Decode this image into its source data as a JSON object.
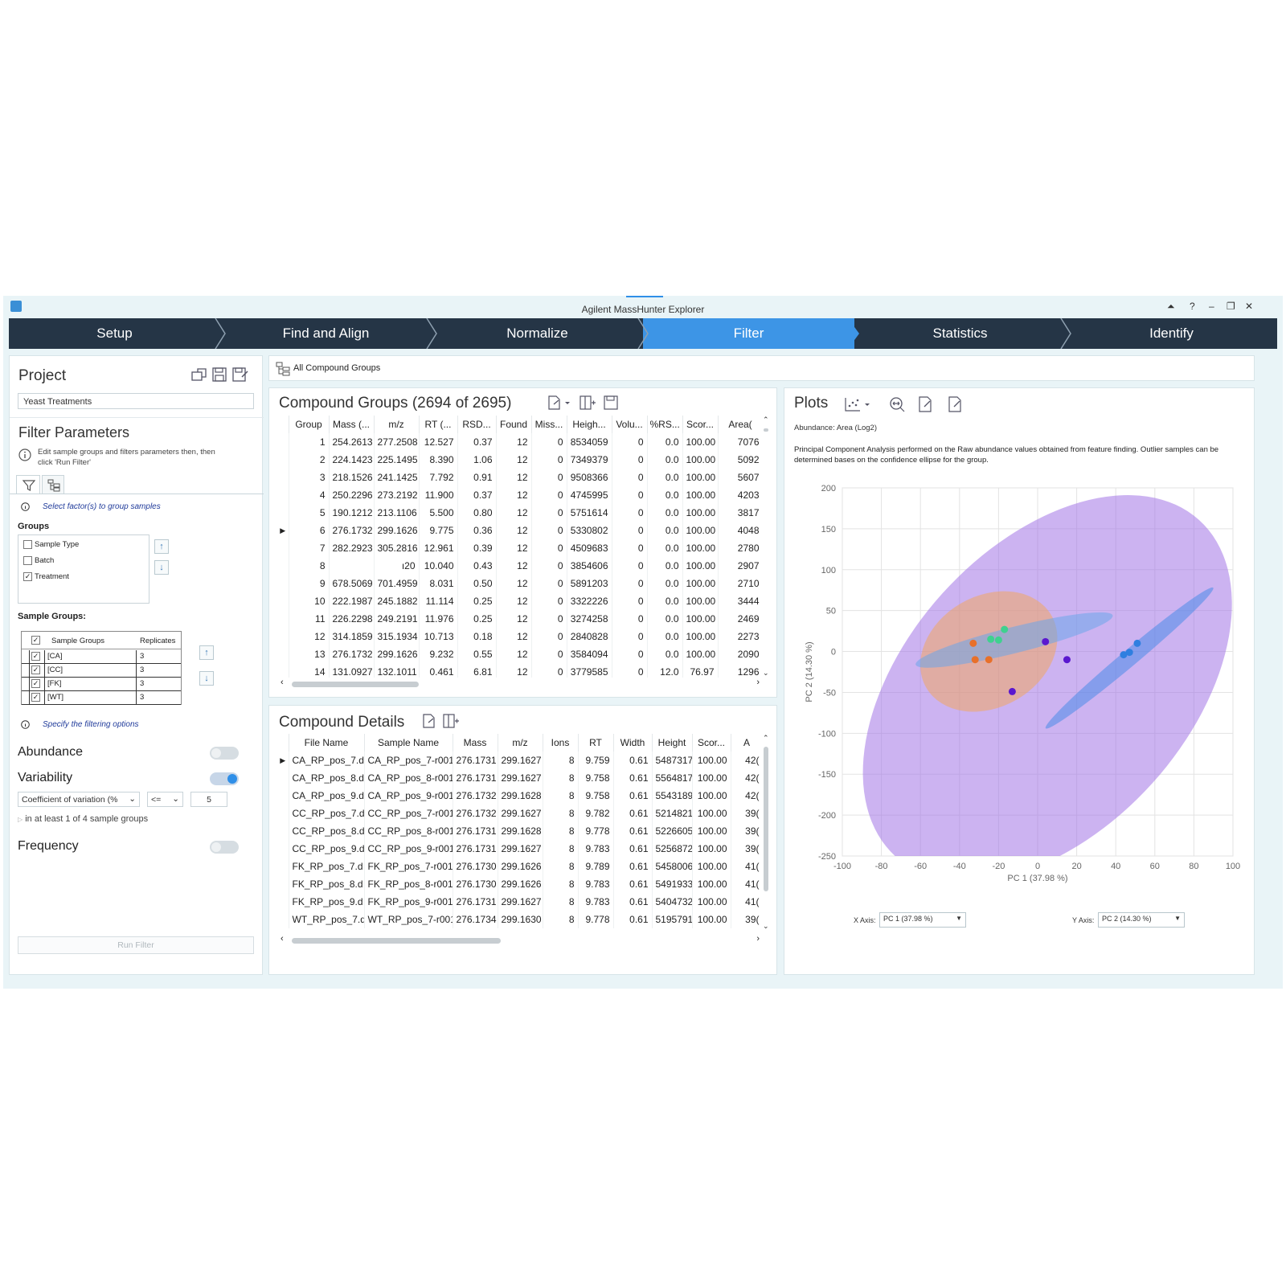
{
  "window": {
    "title": "Agilent MassHunter Explorer",
    "controls": [
      "⏶",
      "?",
      "–",
      "❐",
      "✕"
    ]
  },
  "wizard": {
    "steps": [
      {
        "label": "Setup",
        "active": false
      },
      {
        "label": "Find and Align",
        "active": false
      },
      {
        "label": "Normalize",
        "active": false
      },
      {
        "label": "Filter",
        "active": true
      },
      {
        "label": "Statistics",
        "active": false
      },
      {
        "label": "Identify",
        "active": false
      }
    ]
  },
  "project": {
    "title": "Project",
    "name": "Yeast Treatments"
  },
  "filter_params": {
    "title": "Filter Parameters",
    "info": "Edit sample groups and filters parameters then, then click 'Run Filter'",
    "select_factor_hint": "Select factor(s) to group samples",
    "groups_label": "Groups",
    "groups": [
      {
        "label": "Sample Type",
        "checked": false
      },
      {
        "label": "Batch",
        "checked": false
      },
      {
        "label": "Treatment",
        "checked": true
      }
    ],
    "sample_groups_label": "Sample Groups:",
    "sample_groups_header": [
      "Sample Groups",
      "Replicates"
    ],
    "sample_groups": [
      {
        "name": "[CA]",
        "replicates": "3"
      },
      {
        "name": "[CC]",
        "replicates": "3"
      },
      {
        "name": "[FK]",
        "replicates": "3"
      },
      {
        "name": "[WT]",
        "replicates": "3"
      }
    ],
    "specify_hint": "Specify the filtering options",
    "abundance_label": "Abundance",
    "variability_label": "Variability",
    "variability_metric": "Coefficient of variation (%",
    "variability_op": "<=",
    "variability_value": "5",
    "variability_scope": "in at least 1 of 4 sample groups",
    "frequency_label": "Frequency",
    "toggles": {
      "abundance": false,
      "variability": true,
      "frequency": false
    },
    "run_button": "Run Filter"
  },
  "breadcrumb": {
    "label": "All Compound Groups"
  },
  "compound_groups": {
    "title": "Compound Groups (2694 of 2695)",
    "columns": [
      "Group",
      "Mass (...",
      "m/z",
      "RT (...",
      "RSD...",
      "Found",
      "Miss...",
      "Heigh...",
      "Volu...",
      "%RS...",
      "Scor...",
      "Area("
    ],
    "rows": [
      [
        "1",
        "254.2613",
        "277.2508",
        "12.527",
        "0.37",
        "12",
        "0",
        "8534059",
        "0",
        "0.0",
        "100.00",
        "7076"
      ],
      [
        "2",
        "224.1423",
        "225.1495",
        "8.390",
        "1.06",
        "12",
        "0",
        "7349379",
        "0",
        "0.0",
        "100.00",
        "5092"
      ],
      [
        "3",
        "218.1526",
        "241.1425",
        "7.792",
        "0.91",
        "12",
        "0",
        "9508366",
        "0",
        "0.0",
        "100.00",
        "5607"
      ],
      [
        "4",
        "250.2296",
        "273.2192",
        "11.900",
        "0.37",
        "12",
        "0",
        "4745995",
        "0",
        "0.0",
        "100.00",
        "4203"
      ],
      [
        "5",
        "190.1212",
        "213.1106",
        "5.500",
        "0.80",
        "12",
        "0",
        "5751614",
        "0",
        "0.0",
        "100.00",
        "3817"
      ],
      [
        "6",
        "276.1732",
        "299.1626",
        "9.775",
        "0.36",
        "12",
        "0",
        "5330802",
        "0",
        "0.0",
        "100.00",
        "4048"
      ],
      [
        "7",
        "282.2923",
        "305.2816",
        "12.961",
        "0.39",
        "12",
        "0",
        "4509683",
        "0",
        "0.0",
        "100.00",
        "2780"
      ],
      [
        "8",
        "",
        "ı20",
        "10.040",
        "0.43",
        "12",
        "0",
        "3854606",
        "0",
        "0.0",
        "100.00",
        "2907"
      ],
      [
        "9",
        "678.5069",
        "701.4959",
        "8.031",
        "0.50",
        "12",
        "0",
        "5891203",
        "0",
        "0.0",
        "100.00",
        "2710"
      ],
      [
        "10",
        "222.1987",
        "245.1882",
        "11.114",
        "0.25",
        "12",
        "0",
        "3322226",
        "0",
        "0.0",
        "100.00",
        "3444"
      ],
      [
        "11",
        "226.2298",
        "249.2191",
        "11.976",
        "0.25",
        "12",
        "0",
        "3274258",
        "0",
        "0.0",
        "100.00",
        "2469"
      ],
      [
        "12",
        "314.1859",
        "315.1934",
        "10.713",
        "0.18",
        "12",
        "0",
        "2840828",
        "0",
        "0.0",
        "100.00",
        "2273"
      ],
      [
        "13",
        "276.1732",
        "299.1626",
        "9.232",
        "0.55",
        "12",
        "0",
        "3584094",
        "0",
        "0.0",
        "100.00",
        "2090"
      ],
      [
        "14",
        "131.0927",
        "132.1011",
        "0.461",
        "6.81",
        "12",
        "0",
        "3779585",
        "0",
        "12.0",
        "76.97",
        "1296"
      ]
    ],
    "selected_row": 5
  },
  "compound_details": {
    "title": "Compound Details",
    "columns": [
      "File Name",
      "Sample Name",
      "Mass",
      "m/z",
      "Ions",
      "RT",
      "Width",
      "Height",
      "Scor...",
      "A"
    ],
    "rows": [
      [
        "CA_RP_pos_7.d",
        "CA_RP_pos_7-r001",
        "276.1731",
        "299.1627",
        "8",
        "9.759",
        "0.61",
        "5487317",
        "100.00",
        "42("
      ],
      [
        "CA_RP_pos_8.d",
        "CA_RP_pos_8-r001",
        "276.1731",
        "299.1627",
        "8",
        "9.758",
        "0.61",
        "5564817",
        "100.00",
        "42("
      ],
      [
        "CA_RP_pos_9.d",
        "CA_RP_pos_9-r001",
        "276.1732",
        "299.1628",
        "8",
        "9.758",
        "0.61",
        "5543189",
        "100.00",
        "42("
      ],
      [
        "CC_RP_pos_7.d",
        "CC_RP_pos_7-r001",
        "276.1732",
        "299.1627",
        "8",
        "9.782",
        "0.61",
        "5214821",
        "100.00",
        "39("
      ],
      [
        "CC_RP_pos_8.d",
        "CC_RP_pos_8-r001",
        "276.1731",
        "299.1628",
        "8",
        "9.778",
        "0.61",
        "5226605",
        "100.00",
        "39("
      ],
      [
        "CC_RP_pos_9.d",
        "CC_RP_pos_9-r001",
        "276.1731",
        "299.1627",
        "8",
        "9.783",
        "0.61",
        "5256872",
        "100.00",
        "39("
      ],
      [
        "FK_RP_pos_7.d",
        "FK_RP_pos_7-r001",
        "276.1730",
        "299.1626",
        "8",
        "9.789",
        "0.61",
        "5458006",
        "100.00",
        "41("
      ],
      [
        "FK_RP_pos_8.d",
        "FK_RP_pos_8-r001",
        "276.1730",
        "299.1626",
        "8",
        "9.783",
        "0.61",
        "5491933",
        "100.00",
        "41("
      ],
      [
        "FK_RP_pos_9.d",
        "FK_RP_pos_9-r001",
        "276.1731",
        "299.1627",
        "8",
        "9.783",
        "0.61",
        "5404732",
        "100.00",
        "41("
      ],
      [
        "WT_RP_pos_7.d",
        "WT_RP_pos_7-r001",
        "276.1734",
        "299.1630",
        "8",
        "9.778",
        "0.61",
        "5195791",
        "100.00",
        "39("
      ]
    ],
    "selected_row": 0
  },
  "plots": {
    "title": "Plots",
    "abundance_note": "Abundance: Area (Log2)",
    "description": "Principal Component Analysis performed on the Raw abundance values obtained from feature finding. Outlier samples can be determined bases on the confidence ellipse for the group.",
    "x_axis_label": "X Axis:",
    "x_axis_value": "PC 1 (37.98 %)",
    "y_axis_label": "Y Axis:",
    "y_axis_value": "PC 2 (14.30 %)"
  },
  "chart_data": {
    "type": "scatter",
    "xlabel": "PC 1 (37.98 %)",
    "ylabel": "PC 2 (14.30 %)",
    "xlim": [
      -100,
      100
    ],
    "ylim": [
      -250,
      200
    ],
    "xticks": [
      -100,
      -80,
      -60,
      -40,
      -20,
      0,
      20,
      40,
      60,
      80,
      100
    ],
    "yticks": [
      200,
      150,
      100,
      50,
      0,
      -50,
      -100,
      -150,
      -200,
      -250
    ],
    "grid": true,
    "series": [
      {
        "color": "#e8702a",
        "points": [
          [
            -33,
            10
          ],
          [
            -32,
            -10
          ],
          [
            -25,
            -10
          ]
        ],
        "ellipse": {
          "cx": -25,
          "cy": 0,
          "rx": 37,
          "ry": 68,
          "angle_deg": 30,
          "fill": "#f0a663"
        }
      },
      {
        "color": "#3fd18f",
        "points": [
          [
            -24,
            15
          ],
          [
            -17,
            27
          ],
          [
            -20,
            14
          ]
        ],
        "ellipse": {
          "cx": -12,
          "cy": 14,
          "rx": 52,
          "ry": 16,
          "angle_deg": 14,
          "fill": "#6ba6ea"
        }
      },
      {
        "color": "#5a17cf",
        "points": [
          [
            4,
            12
          ],
          [
            15,
            -10
          ],
          [
            -13,
            -49
          ]
        ],
        "ellipse": {
          "cx": 5,
          "cy": -45,
          "rx": 116,
          "ry": 173,
          "angle_deg": 48,
          "fill": "#a274e6"
        }
      },
      {
        "color": "#2f7fe0",
        "points": [
          [
            44,
            -4
          ],
          [
            47,
            -1
          ],
          [
            51,
            10
          ]
        ],
        "ellipse": {
          "cx": 47,
          "cy": -8,
          "rx": 56,
          "ry": 10,
          "angle_deg": 40,
          "fill": "#4a8be8"
        }
      }
    ]
  }
}
